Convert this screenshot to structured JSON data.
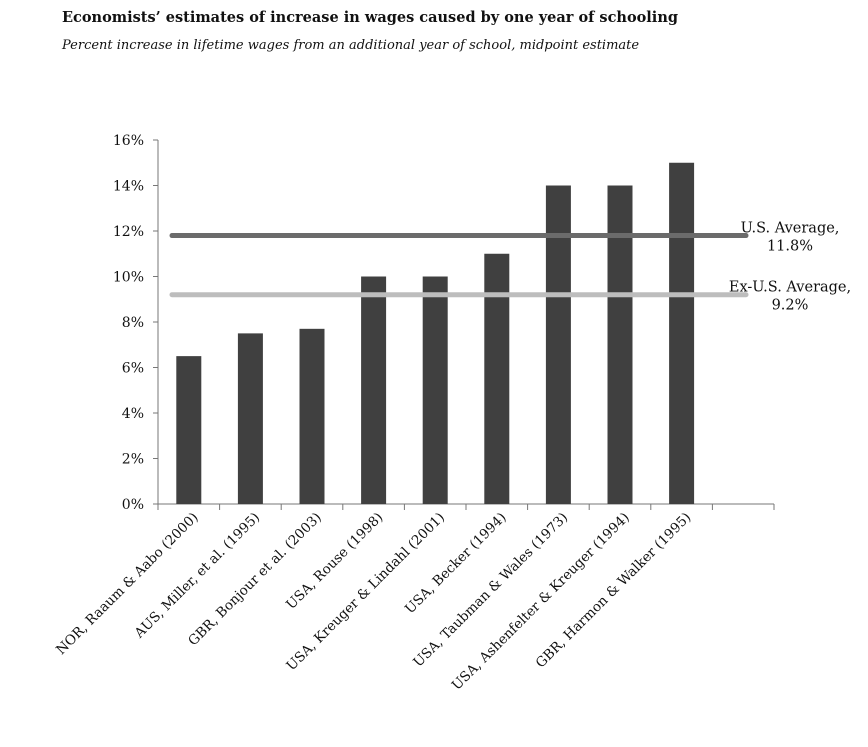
{
  "chart_data": {
    "type": "bar",
    "title": "Economists’ estimates of increase in wages caused by one year of schooling",
    "subtitle": "Percent increase in lifetime wages from an additional year of school,  midpoint estimate",
    "categories": [
      "NOR, Raaum & Aabo (2000)",
      "AUS, Miller, et al. (1995)",
      "GBR, Bonjour et al. (2003)",
      "USA, Rouse (1998)",
      "USA, Kreuger & Lindahl (2001)",
      "USA, Becker (1994)",
      "USA, Taubman & Wales (1973)",
      "USA, Ashenfelter & Kreuger (1994)",
      "GBR, Harmon & Walker (1995)"
    ],
    "values": [
      6.5,
      7.5,
      7.7,
      10,
      10,
      11,
      14,
      14,
      15
    ],
    "unit": "%",
    "ylim": [
      0,
      16
    ],
    "yticks": [
      "0%",
      "2%",
      "4%",
      "6%",
      "8%",
      "10%",
      "12%",
      "14%",
      "16%"
    ],
    "bar_color": "#404040",
    "grid": false,
    "reference_lines": [
      {
        "label_line1": "U.S. Average,",
        "label_line2": "11.8%",
        "value": 11.8,
        "color": "#6b6b6b"
      },
      {
        "label_line1": "Ex-U.S. Average,",
        "label_line2": "9.2%",
        "value": 9.2,
        "color": "#bdbdbd"
      }
    ]
  }
}
